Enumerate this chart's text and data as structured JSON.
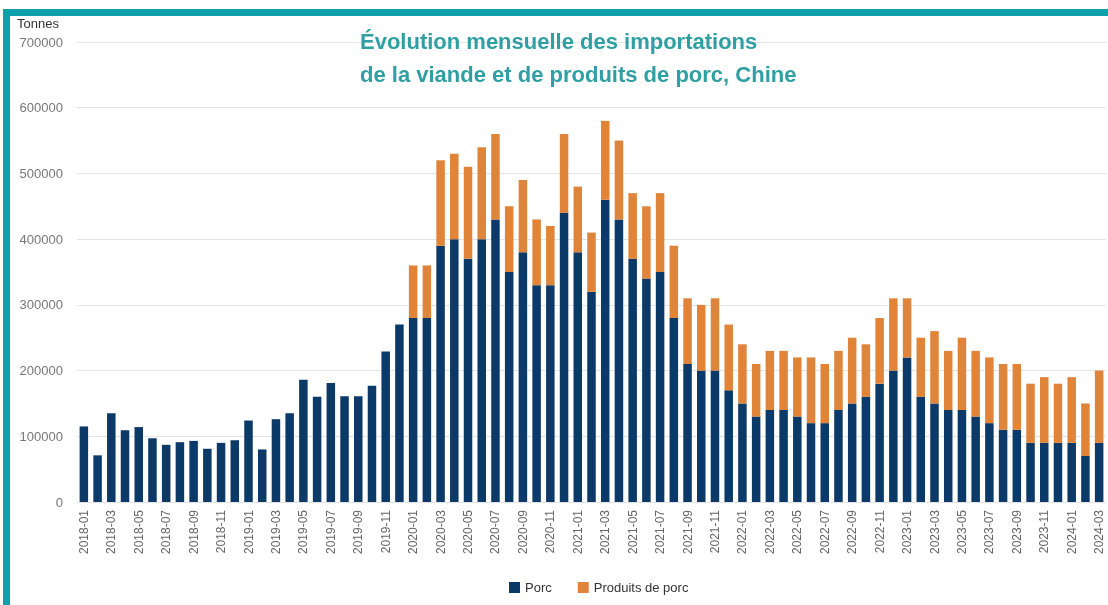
{
  "chart_data": {
    "type": "bar",
    "title": "Évolution mensuelle des importations\nde la viande et de produits de porc, Chine",
    "ylabel": "Tonnes",
    "categories": [
      "2018-01",
      null,
      "2018-03",
      null,
      "2018-05",
      null,
      "2018-07",
      null,
      "2018-09",
      null,
      "2018-11",
      null,
      "2019-01",
      null,
      "2019-03",
      null,
      "2019-05",
      null,
      "2019-07",
      null,
      "2019-09",
      null,
      "2019-11",
      null,
      "2020-01",
      null,
      "2020-03",
      null,
      "2020-05",
      null,
      "2020-07",
      null,
      "2020-09",
      null,
      "2020-11",
      null,
      "2021-01",
      null,
      "2021-03",
      null,
      "2021-05",
      null,
      "2021-07",
      null,
      "2021-09",
      null,
      "2021-11",
      null,
      "2022-01",
      null,
      "2022-03",
      null,
      "2022-05",
      null,
      "2022-07",
      null,
      "2022-09",
      null,
      "2022-11",
      null,
      "2023-01",
      null,
      "2023-03",
      null,
      "2023-05",
      null,
      "2023-07",
      null,
      "2023-09",
      null,
      "2023-11",
      null,
      "2024-01",
      null,
      "2024-03"
    ],
    "series": [
      {
        "name": "Porc",
        "color": "#0c3a68",
        "values": [
          115000,
          71000,
          135000,
          109000,
          114000,
          97000,
          87000,
          91000,
          93000,
          81000,
          90000,
          94000,
          124000,
          80000,
          126000,
          135000,
          186000,
          160000,
          181000,
          161000,
          161000,
          177000,
          229000,
          270000,
          280000,
          280000,
          390000,
          400000,
          370000,
          400000,
          430000,
          350000,
          380000,
          330000,
          330000,
          440000,
          380000,
          320000,
          460000,
          430000,
          370000,
          340000,
          350000,
          280000,
          210000,
          200000,
          200000,
          170000,
          150000,
          130000,
          140000,
          140000,
          130000,
          120000,
          120000,
          140000,
          150000,
          160000,
          180000,
          200000,
          220000,
          160000,
          150000,
          140000,
          140000,
          130000,
          120000,
          110000,
          110000,
          90000,
          90000,
          90000,
          90000,
          70000,
          90000
        ]
      },
      {
        "name": "Produits de porc",
        "color": "#e0843a",
        "values": [
          null,
          null,
          null,
          null,
          null,
          null,
          null,
          null,
          null,
          null,
          null,
          null,
          null,
          null,
          null,
          null,
          null,
          null,
          null,
          null,
          null,
          null,
          null,
          null,
          80000,
          80000,
          130000,
          130000,
          140000,
          140000,
          130000,
          100000,
          110000,
          100000,
          90000,
          120000,
          100000,
          90000,
          120000,
          120000,
          100000,
          110000,
          120000,
          110000,
          100000,
          100000,
          110000,
          100000,
          90000,
          80000,
          90000,
          90000,
          90000,
          100000,
          90000,
          90000,
          100000,
          80000,
          100000,
          110000,
          90000,
          90000,
          110000,
          90000,
          110000,
          100000,
          100000,
          100000,
          100000,
          90000,
          100000,
          90000,
          100000,
          80000,
          110000
        ]
      }
    ],
    "stacked": true,
    "ylim": [
      0,
      700000
    ],
    "yticks": [
      0,
      100000,
      200000,
      300000,
      400000,
      500000,
      600000,
      700000
    ],
    "grid": "y",
    "legend": "bottom"
  }
}
